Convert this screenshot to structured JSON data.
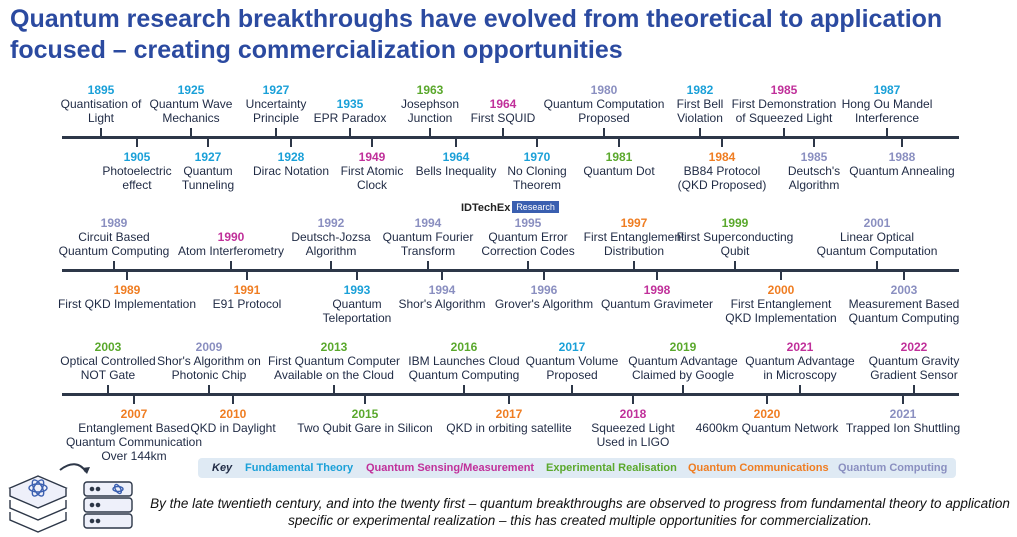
{
  "title": "Quantum research breakthroughs have evolved from theoretical to application focused – creating commercialization opportunities",
  "colors": {
    "fundamental": "#1aa0d8",
    "sensing": "#c0309a",
    "experimental": "#5aa82c",
    "communications": "#ef7d22",
    "computing": "#8a8fc0",
    "axis": "#2d3748",
    "title": "#2b4aa0"
  },
  "brand": {
    "name": "IDTechEx",
    "tag": "Research"
  },
  "rows": [
    {
      "above": [
        {
          "year": "1895",
          "label": [
            "Quantisation of",
            "Light"
          ],
          "cat": "fundamental"
        },
        {
          "year": "1925",
          "label": [
            "Quantum Wave",
            "Mechanics"
          ],
          "cat": "fundamental"
        },
        {
          "year": "1927",
          "label": [
            "Uncertainty",
            "Principle"
          ],
          "cat": "fundamental"
        },
        {
          "year": "1935",
          "label": [
            "EPR Paradox"
          ],
          "cat": "fundamental"
        },
        {
          "year": "1963",
          "label": [
            "Josephson",
            "Junction"
          ],
          "cat": "experimental"
        },
        {
          "year": "1964",
          "label": [
            "First SQUID"
          ],
          "cat": "sensing"
        },
        {
          "year": "1980",
          "label": [
            "Quantum Computation",
            "Proposed"
          ],
          "cat": "computing"
        },
        {
          "year": "1982",
          "label": [
            "First Bell",
            "Violation"
          ],
          "cat": "fundamental"
        },
        {
          "year": "1985",
          "label": [
            "First Demonstration",
            "of Squeezed Light"
          ],
          "cat": "sensing"
        },
        {
          "year": "1987",
          "label": [
            "Hong Ou Mandel",
            "Interference"
          ],
          "cat": "fundamental"
        }
      ],
      "below": [
        {
          "year": "1905",
          "label": [
            "Photoelectric",
            "effect"
          ],
          "cat": "fundamental"
        },
        {
          "year": "1927",
          "label": [
            "Quantum",
            "Tunneling"
          ],
          "cat": "fundamental"
        },
        {
          "year": "1928",
          "label": [
            "Dirac Notation"
          ],
          "cat": "fundamental"
        },
        {
          "year": "1949",
          "label": [
            "First Atomic",
            "Clock"
          ],
          "cat": "sensing"
        },
        {
          "year": "1964",
          "label": [
            "Bells Inequality"
          ],
          "cat": "fundamental"
        },
        {
          "year": "1970",
          "label": [
            "No Cloning",
            "Theorem"
          ],
          "cat": "fundamental"
        },
        {
          "year": "1981",
          "label": [
            "Quantum Dot"
          ],
          "cat": "experimental"
        },
        {
          "year": "1984",
          "label": [
            "BB84 Protocol",
            "(QKD Proposed)"
          ],
          "cat": "communications"
        },
        {
          "year": "1985",
          "label": [
            "Deutsch's",
            "Algorithm"
          ],
          "cat": "computing"
        },
        {
          "year": "1988",
          "label": [
            "Quantum Annealing"
          ],
          "cat": "computing"
        }
      ]
    },
    {
      "above": [
        {
          "year": "1989",
          "label": [
            "Circuit Based",
            "Quantum Computing"
          ],
          "cat": "computing"
        },
        {
          "year": "1990",
          "label": [
            "Atom Interferometry"
          ],
          "cat": "sensing"
        },
        {
          "year": "1992",
          "label": [
            "Deutsch-Jozsa",
            "Algorithm"
          ],
          "cat": "computing"
        },
        {
          "year": "1994",
          "label": [
            "Quantum Fourier",
            "Transform"
          ],
          "cat": "computing"
        },
        {
          "year": "1995",
          "label": [
            "Quantum Error",
            "Correction Codes"
          ],
          "cat": "computing"
        },
        {
          "year": "1997",
          "label": [
            "First Entanglement",
            "Distribution"
          ],
          "cat": "communications"
        },
        {
          "year": "1999",
          "label": [
            "First Superconducting",
            "Qubit"
          ],
          "cat": "experimental"
        },
        {
          "year": "2001",
          "label": [
            "Linear Optical",
            "Quantum Computation"
          ],
          "cat": "computing"
        }
      ],
      "below": [
        {
          "year": "1989",
          "label": [
            "First QKD Implementation"
          ],
          "cat": "communications"
        },
        {
          "year": "1991",
          "label": [
            "E91 Protocol"
          ],
          "cat": "communications"
        },
        {
          "year": "1993",
          "label": [
            "Quantum",
            "Teleportation"
          ],
          "cat": "fundamental"
        },
        {
          "year": "1994",
          "label": [
            "Shor's Algorithm"
          ],
          "cat": "computing"
        },
        {
          "year": "1996",
          "label": [
            "Grover's Algorithm"
          ],
          "cat": "computing"
        },
        {
          "year": "1998",
          "label": [
            "Quantum Gravimeter"
          ],
          "cat": "sensing"
        },
        {
          "year": "2000",
          "label": [
            "First Entanglement",
            "QKD Implementation"
          ],
          "cat": "communications"
        },
        {
          "year": "2003",
          "label": [
            "Measurement Based",
            "Quantum Computing"
          ],
          "cat": "computing"
        }
      ]
    },
    {
      "above": [
        {
          "year": "2003",
          "label": [
            "Optical Controlled",
            "NOT Gate"
          ],
          "cat": "experimental"
        },
        {
          "year": "2009",
          "label": [
            "Shor's Algorithm on",
            "Photonic Chip"
          ],
          "cat": "computing"
        },
        {
          "year": "2013",
          "label": [
            "First Quantum Computer",
            "Available on the Cloud"
          ],
          "cat": "experimental"
        },
        {
          "year": "2016",
          "label": [
            "IBM Launches Cloud",
            "Quantum Computing"
          ],
          "cat": "experimental"
        },
        {
          "year": "2017",
          "label": [
            "Quantum Volume",
            "Proposed"
          ],
          "cat": "fundamental"
        },
        {
          "year": "2019",
          "label": [
            "Quantum Advantage",
            "Claimed by Google"
          ],
          "cat": "experimental"
        },
        {
          "year": "2021",
          "label": [
            "Quantum Advantage",
            "in Microscopy"
          ],
          "cat": "sensing"
        },
        {
          "year": "2022",
          "label": [
            "Quantum Gravity",
            "Gradient Sensor"
          ],
          "cat": "sensing"
        }
      ],
      "below": [
        {
          "year": "2007",
          "label": [
            "Entanglement Based",
            "Quantum Communication",
            "Over 144km"
          ],
          "cat": "communications"
        },
        {
          "year": "2010",
          "label": [
            "QKD in Daylight"
          ],
          "cat": "communications"
        },
        {
          "year": "2015",
          "label": [
            "Two Qubit Gare in Silicon"
          ],
          "cat": "experimental"
        },
        {
          "year": "2017",
          "label": [
            "QKD in orbiting satellite"
          ],
          "cat": "communications"
        },
        {
          "year": "2018",
          "label": [
            "Squeezed Light",
            "Used in LIGO"
          ],
          "cat": "sensing"
        },
        {
          "year": "2020",
          "label": [
            "4600km Quantum Network"
          ],
          "cat": "communications"
        },
        {
          "year": "2021",
          "label": [
            "Trapped Ion Shuttling"
          ],
          "cat": "computing"
        }
      ]
    }
  ],
  "key": {
    "title": "Key",
    "items": [
      {
        "label": "Fundamental Theory",
        "cat": "fundamental"
      },
      {
        "label": "Quantum Sensing/Measurement",
        "cat": "sensing"
      },
      {
        "label": "Experimental Realisation",
        "cat": "experimental"
      },
      {
        "label": "Quantum Communications",
        "cat": "communications"
      },
      {
        "label": "Quantum Computing",
        "cat": "computing"
      }
    ]
  },
  "caption": "By the late twentieth century, and into the twenty first – quantum breakthroughs are observed to progress from fundamental theory to application specific or experimental realization – this has created multiple opportunities for commercialization."
}
